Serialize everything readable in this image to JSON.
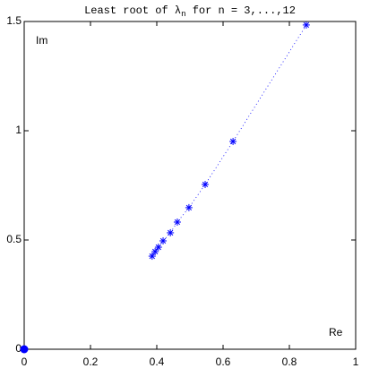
{
  "chart_data": {
    "type": "scatter",
    "title": [
      "Least root of λ",
      "n",
      " for n = 3,...,12"
    ],
    "annotations": [
      "Im",
      "Re"
    ],
    "xlim": [
      0,
      1
    ],
    "ylim": [
      0,
      1.5
    ],
    "xticks": [
      0,
      0.2,
      0.4,
      0.6,
      0.8,
      1
    ],
    "yticks": [
      0,
      0.5,
      1,
      1.5
    ],
    "series": [
      {
        "color": "#0000ff",
        "marker": "asterisk",
        "line": "dotted",
        "x": [
          0.851,
          0.63,
          0.546,
          0.497,
          0.462,
          0.441,
          0.419,
          0.405,
          0.395,
          0.386
        ],
        "values": [
          1.484,
          0.951,
          0.754,
          0.648,
          0.582,
          0.533,
          0.496,
          0.467,
          0.447,
          0.426
        ]
      },
      {
        "color": "#0000ff",
        "marker": "dot",
        "x": [
          0
        ],
        "values": [
          0
        ]
      }
    ]
  }
}
